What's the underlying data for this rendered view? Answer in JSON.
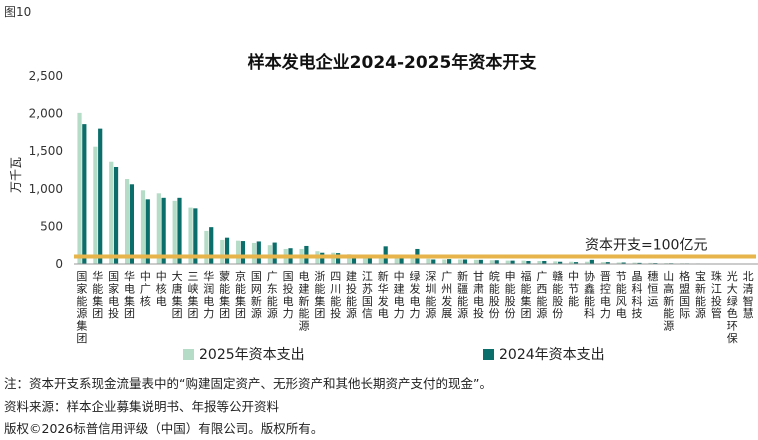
{
  "figure_label": "图10",
  "chart_data": {
    "type": "bar",
    "title": "样本发电企业2024-2025年资本开支",
    "ylabel": "万千瓦",
    "ylim": [
      0,
      2500
    ],
    "yticks": [
      0,
      500,
      1000,
      1500,
      2000,
      2500
    ],
    "ytick_labels": [
      "0",
      "500",
      "1,000",
      "1,500",
      "2,000",
      "2,500"
    ],
    "grid": false,
    "legend_position": "bottom",
    "categories": [
      "国家能源集团",
      "华能集团",
      "国家电投",
      "华电集团",
      "中广核",
      "中核电",
      "大唐集团",
      "三峡集团",
      "华润电力",
      "蒙能集团",
      "京能集团",
      "国网新源",
      "广东能源",
      "国投电力",
      "电建新能源",
      "浙能集团",
      "四川能投",
      "建投能源",
      "江苏国信",
      "新华发电",
      "中建电力",
      "绿发电力",
      "深圳能源",
      "广州发展",
      "新疆能源",
      "甘肃电投",
      "皖能股份",
      "申能股份",
      "福能集团",
      "广西能源",
      "赣能股份",
      "中节能",
      "协鑫能科",
      "晋控电力",
      "节能风电",
      "晶科科技",
      "穗恒运",
      "山高新能源",
      "格盟国际",
      "宝新能源",
      "珠江投管",
      "光大绿色环保",
      "北清智慧"
    ],
    "series": [
      {
        "name": "2025年资本支出",
        "color": "#b5dcc6",
        "values": [
          2010,
          1560,
          1360,
          1130,
          980,
          940,
          840,
          750,
          440,
          320,
          310,
          280,
          250,
          200,
          200,
          170,
          150,
          130,
          110,
          100,
          90,
          80,
          70,
          60,
          60,
          55,
          50,
          45,
          45,
          40,
          35,
          30,
          30,
          25,
          20,
          18,
          15,
          12,
          10,
          8,
          6,
          5,
          3
        ]
      },
      {
        "name": "2024年资本支出",
        "color": "#0b6e6a",
        "values": [
          1860,
          1800,
          1290,
          1060,
          860,
          880,
          880,
          740,
          490,
          350,
          305,
          300,
          285,
          210,
          240,
          150,
          145,
          115,
          100,
          235,
          90,
          200,
          60,
          65,
          60,
          55,
          50,
          45,
          40,
          40,
          30,
          25,
          55,
          25,
          20,
          15,
          12,
          10,
          8,
          6,
          5,
          4,
          3
        ]
      }
    ],
    "reference_line": {
      "value": 100,
      "label": "资本开支=100亿元",
      "color": "#e6b44a"
    }
  },
  "notes": [
    "注：资本开支系现金流量表中的“购建固定资产、无形资产和其他长期资产支付的现金”。",
    "资料来源：样本企业募集说明书、年报等公开资料",
    "版权©2026标普信用评级（中国）有限公司。版权所有。"
  ]
}
